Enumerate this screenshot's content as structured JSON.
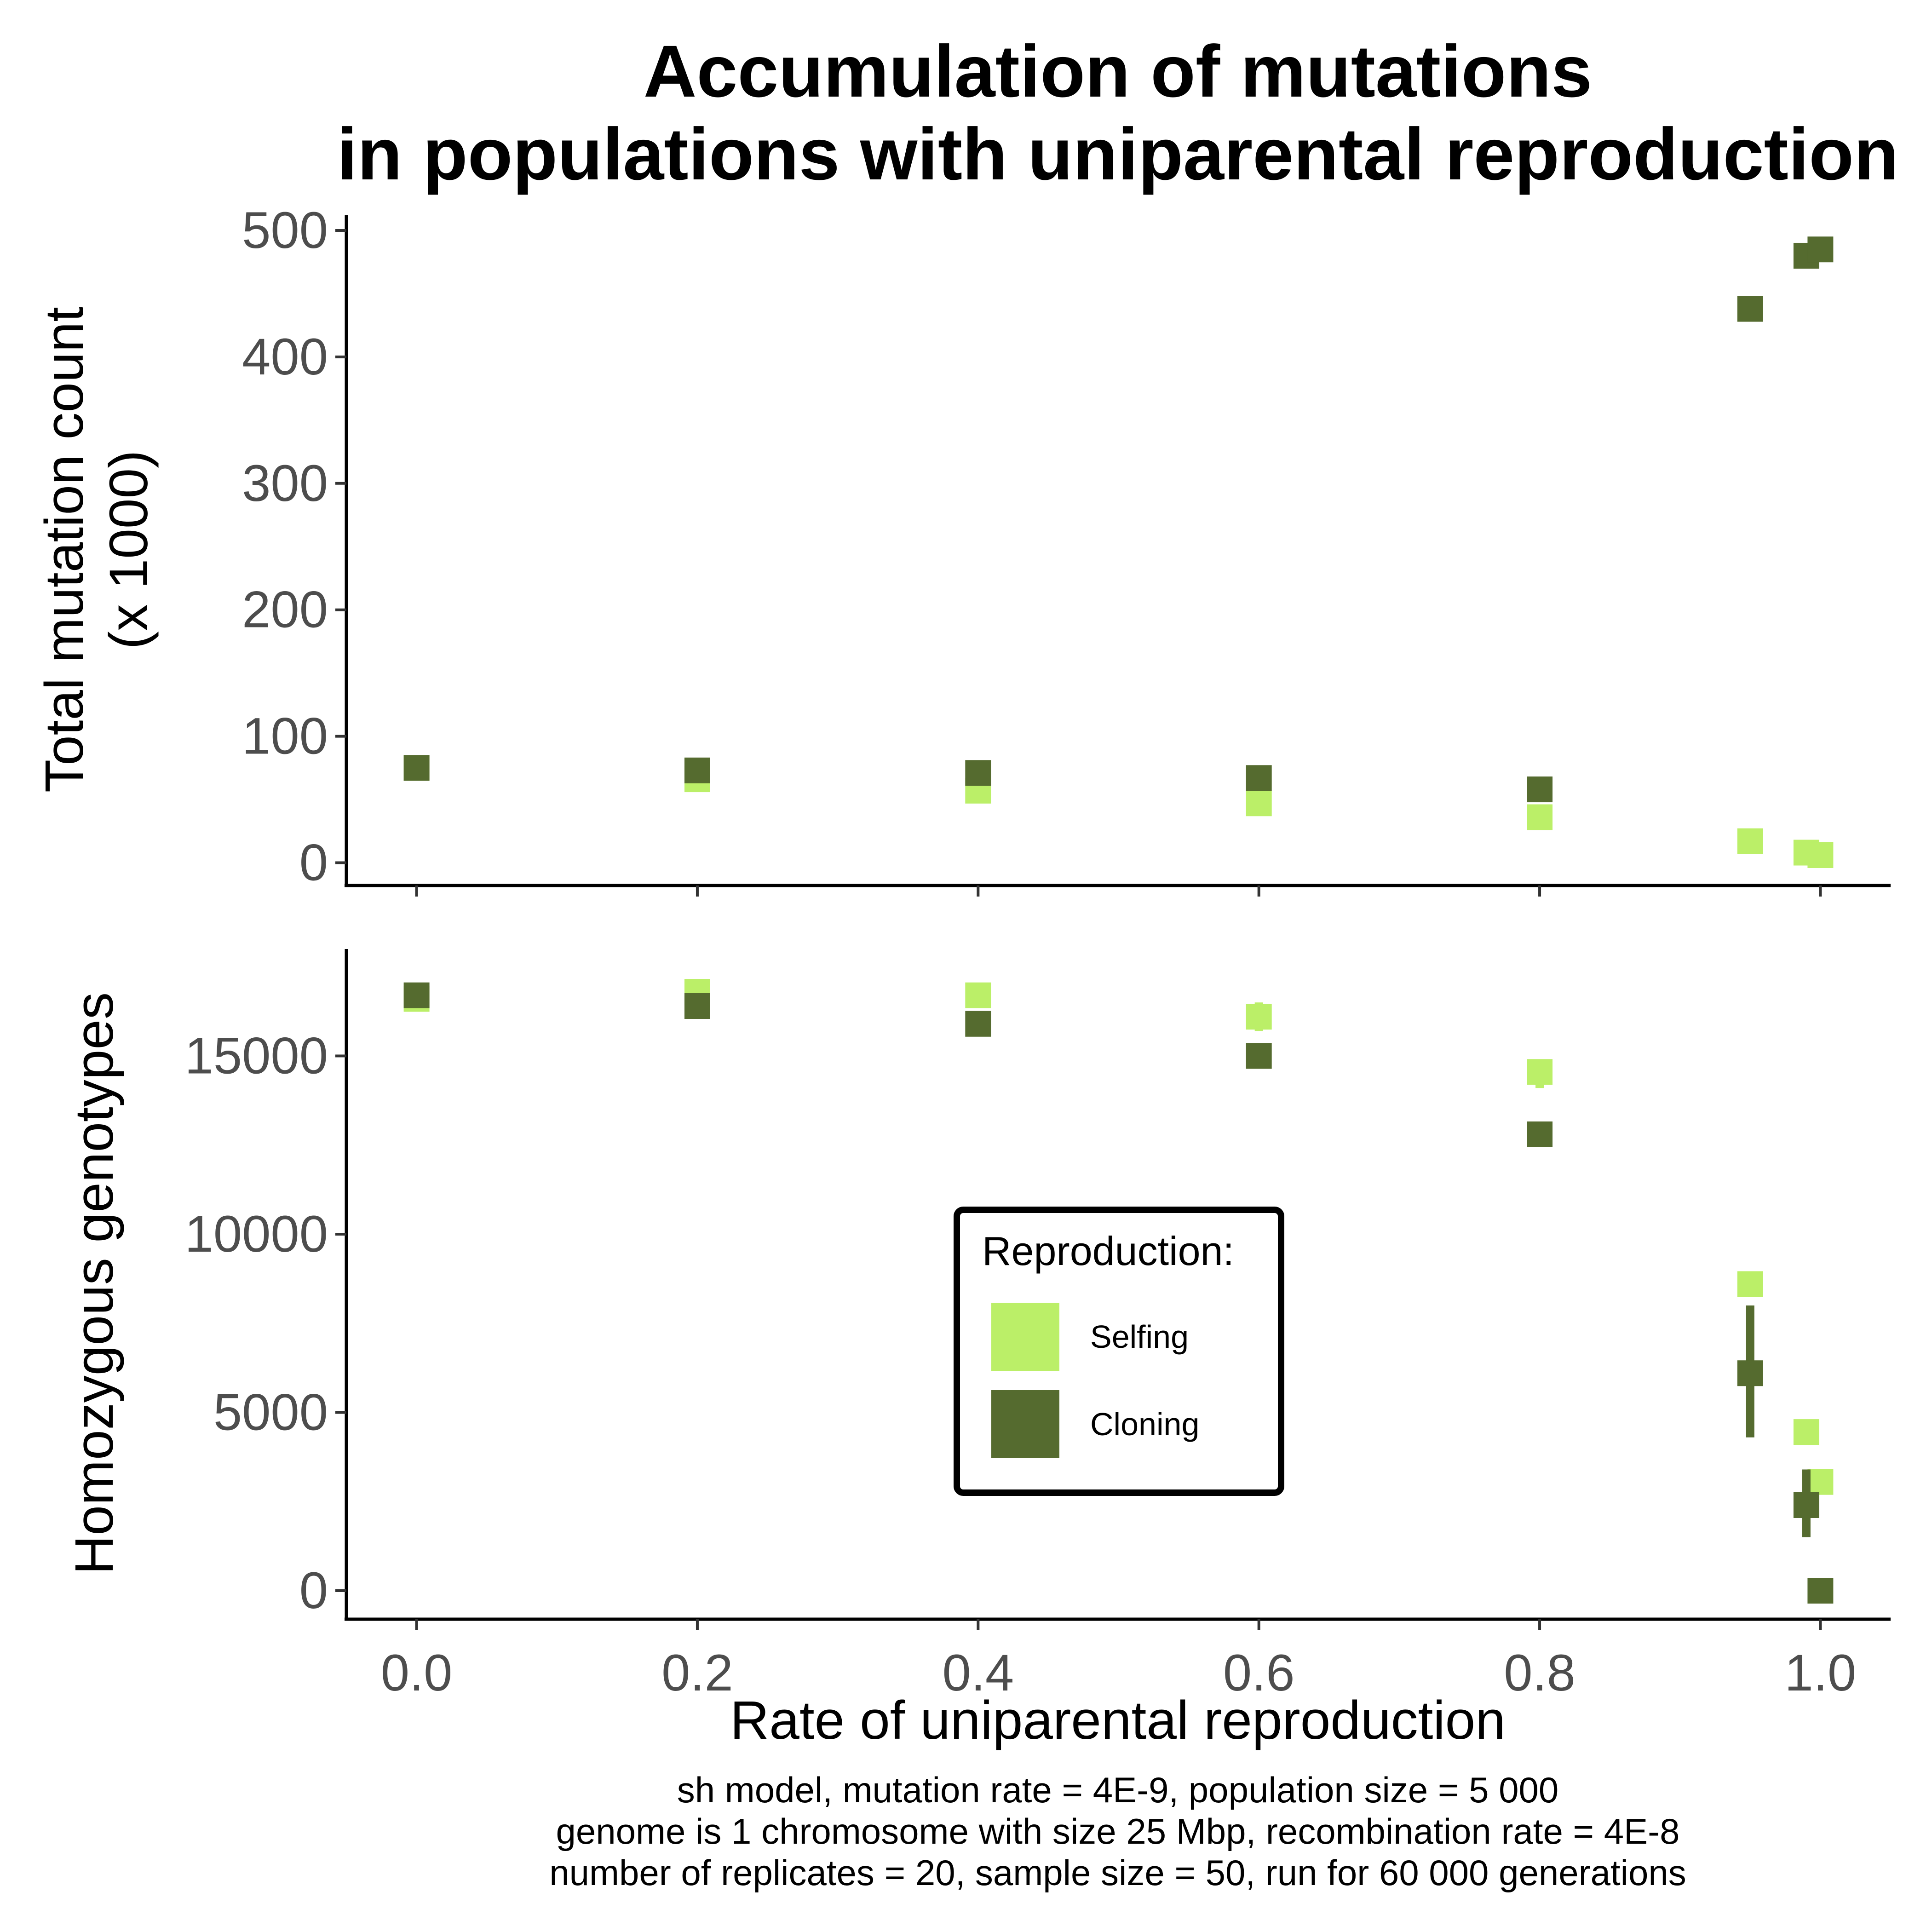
{
  "title": {
    "line1": "Accumulation of mutations",
    "line2": "in populations with uniparental reproduction"
  },
  "caption": {
    "line1": "sh model, mutation rate = 4E-9, population size = 5 000",
    "line2": "genome is 1 chromosome with size 25 Mbp, recombination rate = 4E-8",
    "line3": "number of replicates = 20, sample size = 50, run for 60 000 generations"
  },
  "xlabel": "Rate of uniparental reproduction",
  "legend": {
    "title": "Reproduction:",
    "items": [
      {
        "label": "Selfing",
        "color": "#bbef68"
      },
      {
        "label": "Cloning",
        "color": "#556b2f"
      }
    ]
  },
  "chart_data": [
    {
      "type": "scatter",
      "panel": "top",
      "ylabel_line1": "Total mutation count",
      "ylabel_line2": "(x 1000)",
      "xlim": [
        -0.05,
        1.05
      ],
      "ylim": [
        -18,
        512
      ],
      "x_ticks": [
        "0.0",
        "0.2",
        "0.4",
        "0.6",
        "0.8",
        "1.0"
      ],
      "y_ticks": [
        "0",
        "100",
        "200",
        "300",
        "400",
        "500"
      ],
      "grid": false,
      "series": [
        {
          "name": "Selfing",
          "color": "#bbef68",
          "points": [
            {
              "x": 0.0,
              "y": 75
            },
            {
              "x": 0.2,
              "y": 66
            },
            {
              "x": 0.4,
              "y": 57
            },
            {
              "x": 0.6,
              "y": 47
            },
            {
              "x": 0.8,
              "y": 36
            },
            {
              "x": 0.95,
              "y": 17
            },
            {
              "x": 0.99,
              "y": 8
            },
            {
              "x": 1.0,
              "y": 6
            }
          ]
        },
        {
          "name": "Cloning",
          "color": "#556b2f",
          "points": [
            {
              "x": 0.0,
              "y": 75
            },
            {
              "x": 0.2,
              "y": 73
            },
            {
              "x": 0.4,
              "y": 71
            },
            {
              "x": 0.6,
              "y": 67
            },
            {
              "x": 0.8,
              "y": 58
            },
            {
              "x": 0.95,
              "y": 438
            },
            {
              "x": 0.99,
              "y": 480
            },
            {
              "x": 1.0,
              "y": 485
            }
          ]
        }
      ]
    },
    {
      "type": "scatter",
      "panel": "bottom",
      "ylabel_line1": "Homozygous genotypes",
      "xlim": [
        -0.05,
        1.05
      ],
      "ylim": [
        -800,
        18000
      ],
      "x_ticks": [
        "0.0",
        "0.2",
        "0.4",
        "0.6",
        "0.8",
        "1.0"
      ],
      "y_ticks": [
        "0",
        "5000",
        "10000",
        "15000"
      ],
      "grid": false,
      "series": [
        {
          "name": "Selfing",
          "color": "#bbef68",
          "points": [
            {
              "x": 0.0,
              "y": 16600,
              "ylo": 16500,
              "yhi": 16700
            },
            {
              "x": 0.2,
              "y": 16800,
              "ylo": 16600,
              "yhi": 17000
            },
            {
              "x": 0.4,
              "y": 16700,
              "ylo": 16500,
              "yhi": 16900
            },
            {
              "x": 0.6,
              "y": 16100,
              "ylo": 15700,
              "yhi": 16500
            },
            {
              "x": 0.8,
              "y": 14550,
              "ylo": 14100,
              "yhi": 14900
            },
            {
              "x": 0.95,
              "y": 8600,
              "ylo": 8500,
              "yhi": 8700
            },
            {
              "x": 0.99,
              "y": 4450,
              "ylo": 4350,
              "yhi": 4550
            },
            {
              "x": 1.0,
              "y": 3050,
              "ylo": 2950,
              "yhi": 3150
            }
          ]
        },
        {
          "name": "Cloning",
          "color": "#556b2f",
          "points": [
            {
              "x": 0.0,
              "y": 16700,
              "ylo": 16650,
              "yhi": 16750
            },
            {
              "x": 0.2,
              "y": 16400,
              "ylo": 16350,
              "yhi": 16450
            },
            {
              "x": 0.4,
              "y": 15900,
              "ylo": 15850,
              "yhi": 15950
            },
            {
              "x": 0.6,
              "y": 15000,
              "ylo": 14950,
              "yhi": 15050
            },
            {
              "x": 0.8,
              "y": 12800,
              "ylo": 12750,
              "yhi": 12850
            },
            {
              "x": 0.95,
              "y": 6100,
              "ylo": 4300,
              "yhi": 8000
            },
            {
              "x": 0.99,
              "y": 2400,
              "ylo": 1500,
              "yhi": 3400
            },
            {
              "x": 1.0,
              "y": 0,
              "ylo": -50,
              "yhi": 50
            }
          ]
        }
      ]
    }
  ]
}
